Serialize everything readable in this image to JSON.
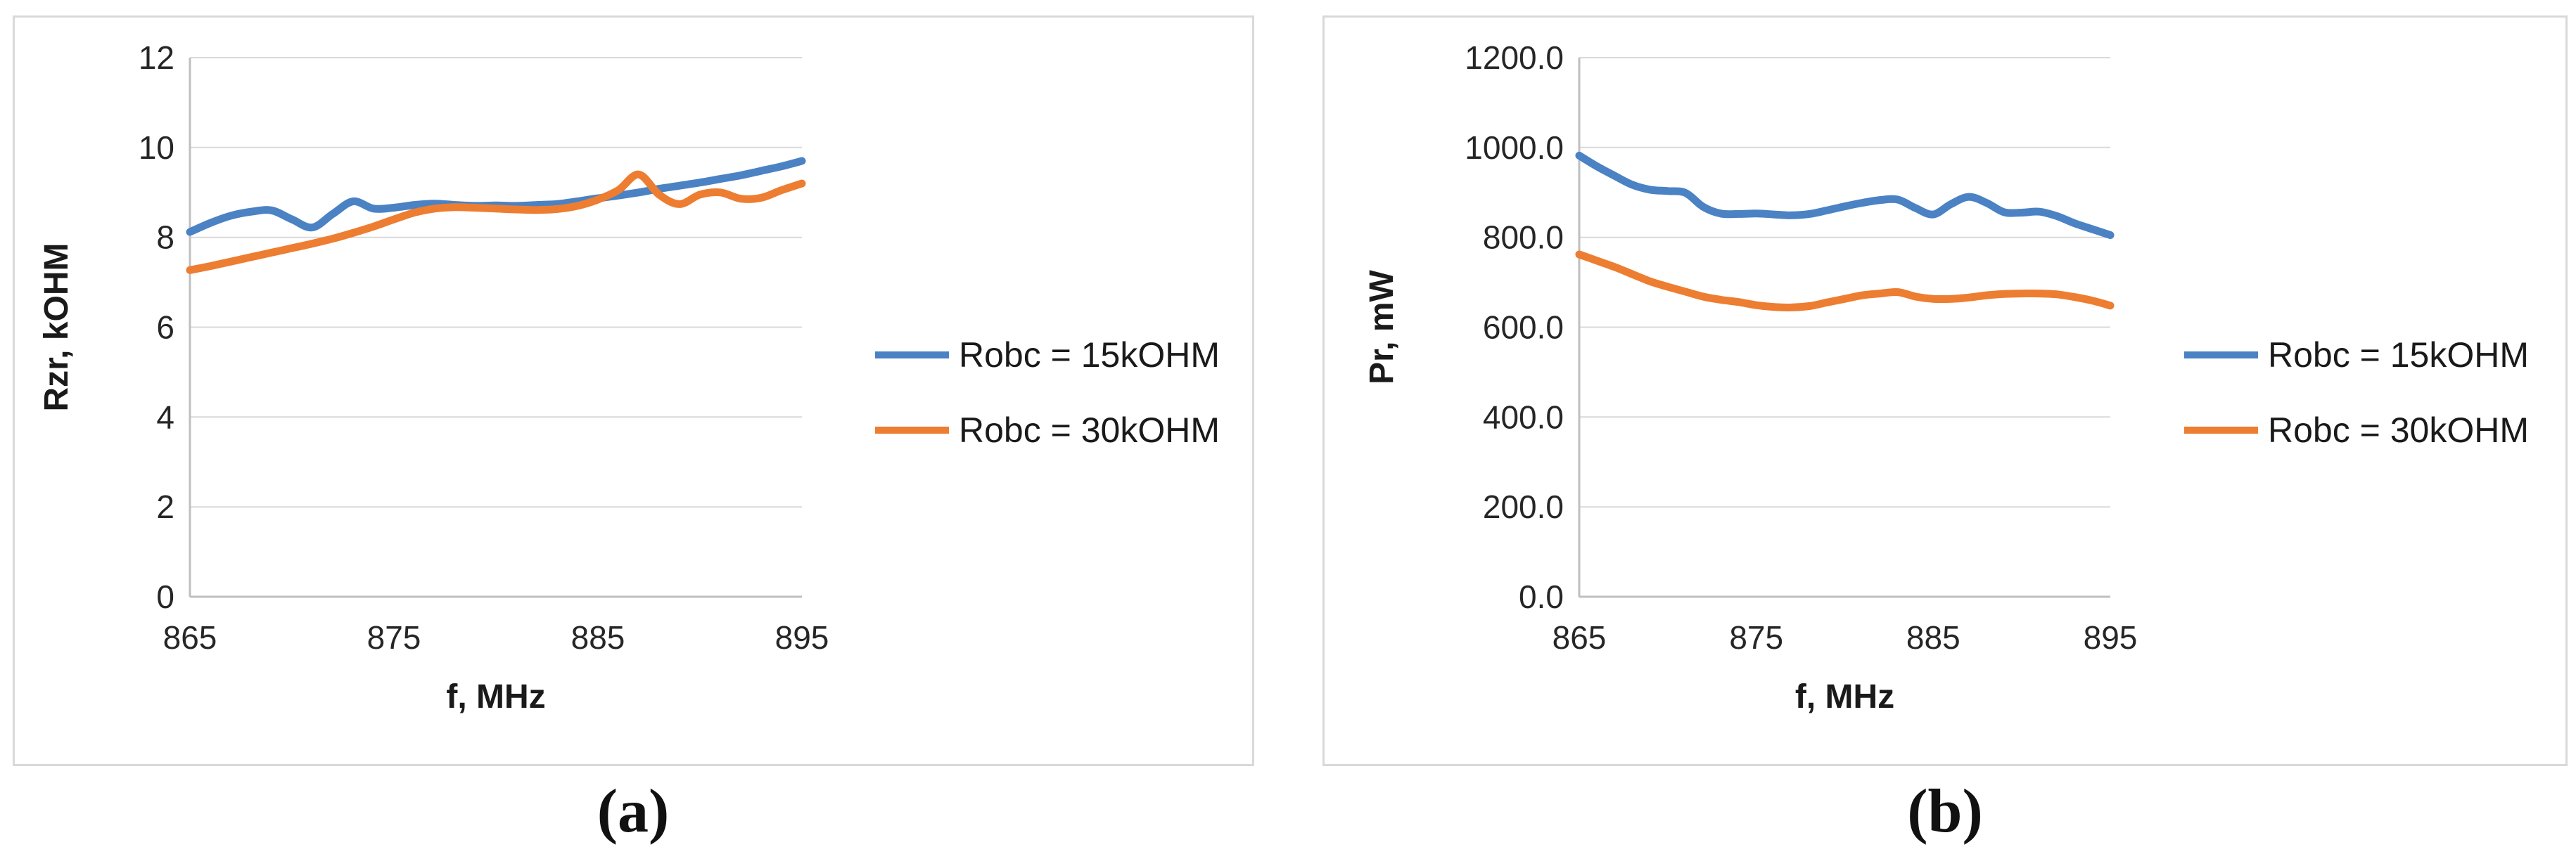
{
  "page_background": "#ffffff",
  "captions": {
    "a": "(a)",
    "b": "(b)"
  },
  "colors": {
    "series_blue": "#4A82C4",
    "series_orange": "#ED7D31",
    "gridline": "#d9d9d9",
    "axis_line": "#bfbfbf",
    "tick_text": "#262626",
    "box_border": "#d9d9d9"
  },
  "legend": {
    "entries": [
      {
        "label": "Robc = 15kOHM",
        "color": "#4A82C4"
      },
      {
        "label": "Robc = 30kOHM",
        "color": "#ED7D31"
      }
    ],
    "position": "right-middle"
  },
  "chart_data": [
    {
      "type": "line",
      "title": "",
      "caption": "(a)",
      "xlabel": "f,  MHz",
      "ylabel": "Rzr, kOHM",
      "xlim": [
        865,
        895
      ],
      "ylim": [
        0,
        12
      ],
      "xticks": [
        865,
        875,
        885,
        895
      ],
      "xtick_labels": [
        "865",
        "875",
        "885",
        "895"
      ],
      "yticks": [
        0,
        2,
        4,
        6,
        8,
        10,
        12
      ],
      "ytick_labels": [
        "0",
        "2",
        "4",
        "6",
        "8",
        "10",
        "12"
      ],
      "grid": true,
      "smooth": true,
      "legend_position": "right",
      "x": [
        865,
        866,
        867,
        868,
        869,
        870,
        871,
        872,
        873,
        874,
        875,
        876,
        877,
        878,
        879,
        880,
        881,
        882,
        883,
        884,
        885,
        886,
        887,
        888,
        889,
        890,
        891,
        892,
        893,
        894,
        895
      ],
      "series": [
        {
          "name": "Robc = 15kOHM",
          "color": "#4A82C4",
          "values": [
            8.12,
            8.32,
            8.48,
            8.57,
            8.6,
            8.4,
            8.22,
            8.52,
            8.8,
            8.64,
            8.66,
            8.72,
            8.75,
            8.72,
            8.7,
            8.71,
            8.7,
            8.72,
            8.74,
            8.8,
            8.87,
            8.93,
            9.0,
            9.08,
            9.15,
            9.22,
            9.3,
            9.38,
            9.48,
            9.58,
            9.7
          ]
        },
        {
          "name": "Robc = 30kOHM",
          "color": "#ED7D31",
          "values": [
            7.27,
            7.36,
            7.46,
            7.56,
            7.66,
            7.76,
            7.86,
            7.97,
            8.1,
            8.24,
            8.4,
            8.55,
            8.64,
            8.67,
            8.66,
            8.64,
            8.62,
            8.61,
            8.63,
            8.7,
            8.84,
            9.05,
            9.4,
            8.95,
            8.74,
            8.95,
            9.0,
            8.86,
            8.88,
            9.05,
            9.2
          ]
        }
      ]
    },
    {
      "type": "line",
      "title": "",
      "caption": "(b)",
      "xlabel": "f,  MHz",
      "ylabel": "Pr, mW",
      "xlim": [
        865,
        895
      ],
      "ylim": [
        0,
        1200
      ],
      "xticks": [
        865,
        875,
        885,
        895
      ],
      "xtick_labels": [
        "865",
        "875",
        "885",
        "895"
      ],
      "yticks": [
        0,
        200,
        400,
        600,
        800,
        1000,
        1200
      ],
      "ytick_labels": [
        "0.0",
        "200.0",
        "400.0",
        "600.0",
        "800.0",
        "1000.0",
        "1200.0"
      ],
      "grid": true,
      "smooth": true,
      "legend_position": "right",
      "x": [
        865,
        866,
        867,
        868,
        869,
        870,
        871,
        872,
        873,
        874,
        875,
        876,
        877,
        878,
        879,
        880,
        881,
        882,
        883,
        884,
        885,
        886,
        887,
        888,
        889,
        890,
        891,
        892,
        893,
        894,
        895
      ],
      "series": [
        {
          "name": "Robc = 15kOHM",
          "color": "#4A82C4",
          "values": [
            982,
            958,
            937,
            917,
            906,
            903,
            899,
            868,
            853,
            852,
            853,
            851,
            849,
            852,
            860,
            869,
            877,
            883,
            884,
            865,
            851,
            874,
            890,
            877,
            856,
            855,
            857,
            847,
            831,
            818,
            805
          ]
        },
        {
          "name": "Robc = 30kOHM",
          "color": "#ED7D31",
          "values": [
            762,
            748,
            734,
            718,
            702,
            690,
            679,
            668,
            661,
            656,
            649,
            645,
            644,
            647,
            655,
            663,
            671,
            675,
            678,
            668,
            663,
            663,
            666,
            671,
            674,
            675,
            675,
            673,
            667,
            659,
            648
          ]
        }
      ]
    }
  ]
}
